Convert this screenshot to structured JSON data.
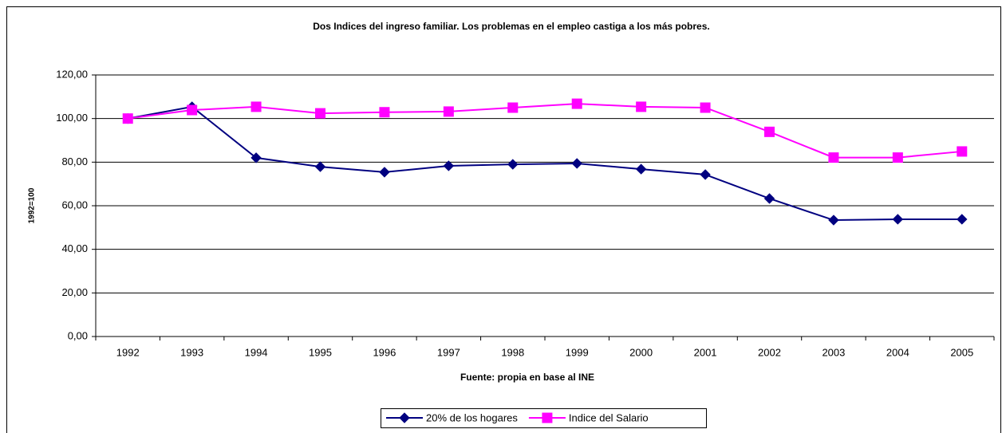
{
  "chart_data": {
    "type": "line",
    "title": "Dos Indices del ingreso familiar. Los problemas en el empleo castiga a los más pobres.",
    "x_label": "Fuente: propia en base al INE",
    "y_label": "1992=100",
    "categories": [
      "1992",
      "1993",
      "1994",
      "1995",
      "1996",
      "1997",
      "1998",
      "1999",
      "2000",
      "2001",
      "2002",
      "2003",
      "2004",
      "2005"
    ],
    "series": [
      {
        "name": "20% de los hogares",
        "color": "#000080",
        "marker": "diamond",
        "values": [
          100,
          105.4,
          82,
          77.9,
          75.4,
          78.3,
          79,
          79.4,
          76.8,
          74.3,
          63.3,
          53.4,
          53.8,
          53.8
        ]
      },
      {
        "name": "Indice del Salario",
        "color": "#ff00ff",
        "marker": "square",
        "values": [
          100,
          103.9,
          105.4,
          102.4,
          102.9,
          103.2,
          105,
          106.8,
          105.4,
          105,
          93.9,
          82.1,
          82.1,
          84.9
        ]
      }
    ],
    "ylim": [
      0,
      120
    ],
    "yticks": [
      {
        "value": 0,
        "label": "0,00"
      },
      {
        "value": 20,
        "label": "20,00"
      },
      {
        "value": 40,
        "label": "40,00"
      },
      {
        "value": 60,
        "label": "60,00"
      },
      {
        "value": 80,
        "label": "80,00"
      },
      {
        "value": 100,
        "label": "100,00"
      },
      {
        "value": 120,
        "label": "120,00"
      }
    ],
    "grid": true,
    "legend": "bottom"
  }
}
